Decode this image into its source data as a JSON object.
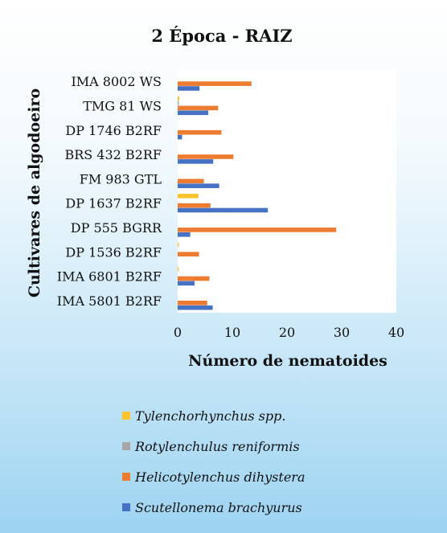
{
  "chart_data": {
    "type": "bar",
    "orientation": "horizontal",
    "title": "2 Época - RAIZ",
    "xlabel": "Número de nematoides",
    "ylabel": "Cultivares de algodoeiro",
    "xlim": [
      0,
      40
    ],
    "xticks": [
      0,
      10,
      20,
      30,
      40
    ],
    "categories": [
      "IMA 8002 WS",
      "TMG 81 WS",
      "DP 1746 B2RF",
      "BRS 432 B2RF",
      "FM 983 GTL",
      "DP 1637 B2RF",
      "DP 555 BGRR",
      "DP 1536 B2RF",
      "IMA 6801 B2RF",
      "IMA 5801 B2RF"
    ],
    "series": [
      {
        "name": "Tylenchorhynchus spp.",
        "color": "#fec42f",
        "values": [
          0,
          0.3,
          0,
          0,
          0,
          3.8,
          0,
          0.2,
          0.2,
          0
        ]
      },
      {
        "name": "Rotylenchulus reniformis",
        "color": "#a5a5a5",
        "values": [
          0,
          0.2,
          0,
          0,
          0,
          0,
          0,
          0,
          0,
          0
        ]
      },
      {
        "name": "Helicotylenchus dihystera",
        "color": "#ee7c30",
        "values": [
          13.5,
          7.4,
          8,
          10.2,
          4.8,
          6,
          29,
          3.9,
          5.8,
          5.4
        ]
      },
      {
        "name": "Scutellonema brachyurus",
        "color": "#4572c4",
        "values": [
          4,
          5.6,
          0.8,
          6.5,
          7.6,
          16.5,
          2.3,
          0,
          3.1,
          6.4
        ]
      }
    ],
    "legend_position": "bottom",
    "grid": false
  }
}
